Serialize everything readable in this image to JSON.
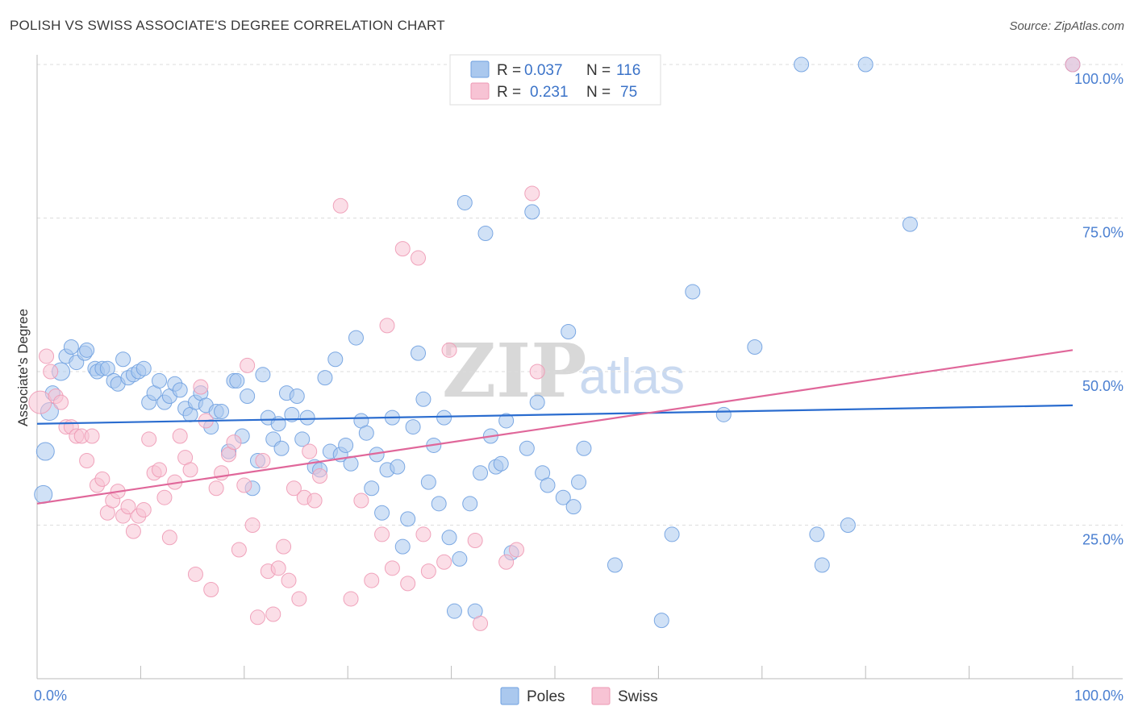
{
  "title": "POLISH VS SWISS ASSOCIATE'S DEGREE CORRELATION CHART",
  "source": "Source: ZipAtlas.com",
  "watermark": {
    "zip": "ZIP",
    "atlas": "atlas"
  },
  "chart_data": {
    "type": "scatter",
    "title": "POLISH VS SWISS ASSOCIATE'S DEGREE CORRELATION CHART",
    "xlabel": "",
    "ylabel": "Associate's Degree",
    "xlim": [
      0,
      100
    ],
    "ylim": [
      0,
      100
    ],
    "x_tick_labels": [
      "0.0%",
      "100.0%"
    ],
    "y_ticks": [
      25,
      50,
      75,
      100
    ],
    "y_tick_labels": [
      "25.0%",
      "50.0%",
      "75.0%",
      "100.0%"
    ],
    "grid": "horizontal dashed",
    "legend": {
      "placement": "top-center",
      "entries": [
        {
          "series": "Poles",
          "r_label": "R =",
          "r_value": "0.037",
          "n_label": "N =",
          "n_value": "116"
        },
        {
          "series": "Swiss",
          "r_label": "R =",
          "r_value": "0.231",
          "n_label": "N =",
          "n_value": "75"
        }
      ]
    },
    "bottom_legend": [
      "Poles",
      "Swiss"
    ],
    "series": [
      {
        "name": "Poles",
        "color": "#6fa0e0",
        "fill": "#aac8ee",
        "line_color": "#2a6ccf",
        "trend": {
          "x": [
            0,
            100
          ],
          "y": [
            41.5,
            44.5
          ]
        },
        "points": [
          {
            "x": 0.6,
            "y": 30,
            "r": 11
          },
          {
            "x": 0.8,
            "y": 37,
            "r": 11
          },
          {
            "x": 1.2,
            "y": 43.5,
            "r": 11
          },
          {
            "x": 1.5,
            "y": 46.5,
            "r": 9
          },
          {
            "x": 2.3,
            "y": 50,
            "r": 11
          },
          {
            "x": 2.8,
            "y": 52.5,
            "r": 9
          },
          {
            "x": 3.3,
            "y": 54,
            "r": 9
          },
          {
            "x": 3.8,
            "y": 51.5,
            "r": 9
          },
          {
            "x": 4.6,
            "y": 53,
            "r": 9
          },
          {
            "x": 4.8,
            "y": 53.5,
            "r": 9
          },
          {
            "x": 5.6,
            "y": 50.5,
            "r": 9
          },
          {
            "x": 5.8,
            "y": 50,
            "r": 9
          },
          {
            "x": 6.3,
            "y": 50.5,
            "r": 9
          },
          {
            "x": 6.8,
            "y": 50.5,
            "r": 9
          },
          {
            "x": 7.4,
            "y": 48.5,
            "r": 9
          },
          {
            "x": 7.8,
            "y": 48,
            "r": 9
          },
          {
            "x": 8.3,
            "y": 52,
            "r": 9
          },
          {
            "x": 8.8,
            "y": 49,
            "r": 9
          },
          {
            "x": 9.3,
            "y": 49.5,
            "r": 9
          },
          {
            "x": 9.8,
            "y": 50,
            "r": 9
          },
          {
            "x": 10.3,
            "y": 50.5,
            "r": 9
          },
          {
            "x": 10.8,
            "y": 45,
            "r": 9
          },
          {
            "x": 11.3,
            "y": 46.5,
            "r": 9
          },
          {
            "x": 11.8,
            "y": 48.5,
            "r": 9
          },
          {
            "x": 12.3,
            "y": 45,
            "r": 9
          },
          {
            "x": 12.8,
            "y": 46,
            "r": 9
          },
          {
            "x": 13.3,
            "y": 48,
            "r": 9
          },
          {
            "x": 13.8,
            "y": 47,
            "r": 9
          },
          {
            "x": 14.3,
            "y": 44,
            "r": 9
          },
          {
            "x": 14.8,
            "y": 43,
            "r": 9
          },
          {
            "x": 15.3,
            "y": 45,
            "r": 9
          },
          {
            "x": 15.8,
            "y": 46.5,
            "r": 9
          },
          {
            "x": 16.3,
            "y": 44.5,
            "r": 9
          },
          {
            "x": 16.8,
            "y": 41,
            "r": 9
          },
          {
            "x": 17.3,
            "y": 43.5,
            "r": 9
          },
          {
            "x": 17.8,
            "y": 43.5,
            "r": 9
          },
          {
            "x": 18.5,
            "y": 37,
            "r": 9
          },
          {
            "x": 19.0,
            "y": 48.5,
            "r": 9
          },
          {
            "x": 19.3,
            "y": 48.5,
            "r": 9
          },
          {
            "x": 19.8,
            "y": 39.5,
            "r": 9
          },
          {
            "x": 20.3,
            "y": 46,
            "r": 9
          },
          {
            "x": 20.8,
            "y": 31,
            "r": 9
          },
          {
            "x": 21.3,
            "y": 35.5,
            "r": 9
          },
          {
            "x": 21.8,
            "y": 49.5,
            "r": 9
          },
          {
            "x": 22.3,
            "y": 42.5,
            "r": 9
          },
          {
            "x": 22.8,
            "y": 39,
            "r": 9
          },
          {
            "x": 23.3,
            "y": 41.5,
            "r": 9
          },
          {
            "x": 23.6,
            "y": 37.5,
            "r": 9
          },
          {
            "x": 24.1,
            "y": 46.5,
            "r": 9
          },
          {
            "x": 24.6,
            "y": 43,
            "r": 9
          },
          {
            "x": 25.1,
            "y": 46,
            "r": 9
          },
          {
            "x": 25.6,
            "y": 39,
            "r": 9
          },
          {
            "x": 26.1,
            "y": 42.5,
            "r": 9
          },
          {
            "x": 26.8,
            "y": 34.5,
            "r": 9
          },
          {
            "x": 27.3,
            "y": 34,
            "r": 9
          },
          {
            "x": 27.8,
            "y": 49,
            "r": 9
          },
          {
            "x": 28.3,
            "y": 37,
            "r": 9
          },
          {
            "x": 28.8,
            "y": 52,
            "r": 9
          },
          {
            "x": 29.3,
            "y": 36.5,
            "r": 9
          },
          {
            "x": 29.8,
            "y": 38,
            "r": 9
          },
          {
            "x": 30.3,
            "y": 35,
            "r": 9
          },
          {
            "x": 30.8,
            "y": 55.5,
            "r": 9
          },
          {
            "x": 31.3,
            "y": 42,
            "r": 9
          },
          {
            "x": 31.8,
            "y": 40,
            "r": 9
          },
          {
            "x": 32.3,
            "y": 31,
            "r": 9
          },
          {
            "x": 32.8,
            "y": 36.5,
            "r": 9
          },
          {
            "x": 33.3,
            "y": 27,
            "r": 9
          },
          {
            "x": 33.8,
            "y": 34,
            "r": 9
          },
          {
            "x": 34.3,
            "y": 42.5,
            "r": 9
          },
          {
            "x": 34.8,
            "y": 34.5,
            "r": 9
          },
          {
            "x": 35.3,
            "y": 21.5,
            "r": 9
          },
          {
            "x": 35.8,
            "y": 26,
            "r": 9
          },
          {
            "x": 36.3,
            "y": 41,
            "r": 9
          },
          {
            "x": 36.8,
            "y": 53,
            "r": 9
          },
          {
            "x": 37.3,
            "y": 45.5,
            "r": 9
          },
          {
            "x": 37.8,
            "y": 32,
            "r": 9
          },
          {
            "x": 38.3,
            "y": 38,
            "r": 9
          },
          {
            "x": 38.8,
            "y": 28.5,
            "r": 9
          },
          {
            "x": 39.3,
            "y": 42.5,
            "r": 9
          },
          {
            "x": 39.8,
            "y": 23,
            "r": 9
          },
          {
            "x": 40.3,
            "y": 11,
            "r": 9
          },
          {
            "x": 40.8,
            "y": 19.5,
            "r": 9
          },
          {
            "x": 41.3,
            "y": 77.5,
            "r": 9
          },
          {
            "x": 41.8,
            "y": 28.5,
            "r": 9
          },
          {
            "x": 42.3,
            "y": 11,
            "r": 9
          },
          {
            "x": 42.8,
            "y": 33.5,
            "r": 9
          },
          {
            "x": 43.3,
            "y": 72.5,
            "r": 9
          },
          {
            "x": 43.8,
            "y": 39.5,
            "r": 9
          },
          {
            "x": 44.3,
            "y": 34.5,
            "r": 9
          },
          {
            "x": 44.8,
            "y": 35,
            "r": 9
          },
          {
            "x": 45.3,
            "y": 42,
            "r": 9
          },
          {
            "x": 45.8,
            "y": 20.5,
            "r": 9
          },
          {
            "x": 47.3,
            "y": 37.5,
            "r": 9
          },
          {
            "x": 47.8,
            "y": 76,
            "r": 9
          },
          {
            "x": 48.3,
            "y": 45,
            "r": 9
          },
          {
            "x": 48.8,
            "y": 33.5,
            "r": 9
          },
          {
            "x": 49.3,
            "y": 31.5,
            "r": 9
          },
          {
            "x": 50.8,
            "y": 29.5,
            "r": 9
          },
          {
            "x": 51.3,
            "y": 56.5,
            "r": 9
          },
          {
            "x": 51.8,
            "y": 28,
            "r": 9
          },
          {
            "x": 52.3,
            "y": 32,
            "r": 9
          },
          {
            "x": 52.8,
            "y": 37.5,
            "r": 9
          },
          {
            "x": 55.8,
            "y": 18.5,
            "r": 9
          },
          {
            "x": 60.3,
            "y": 9.5,
            "r": 9
          },
          {
            "x": 61.3,
            "y": 23.5,
            "r": 9
          },
          {
            "x": 63.3,
            "y": 63,
            "r": 9
          },
          {
            "x": 66.3,
            "y": 43,
            "r": 9
          },
          {
            "x": 69.3,
            "y": 54,
            "r": 9
          },
          {
            "x": 73.8,
            "y": 100,
            "r": 9
          },
          {
            "x": 75.3,
            "y": 23.5,
            "r": 9
          },
          {
            "x": 75.8,
            "y": 18.5,
            "r": 9
          },
          {
            "x": 78.3,
            "y": 25,
            "r": 9
          },
          {
            "x": 80.0,
            "y": 100,
            "r": 9
          },
          {
            "x": 84.3,
            "y": 74,
            "r": 9
          },
          {
            "x": 100,
            "y": 100,
            "r": 9
          }
        ]
      },
      {
        "name": "Swiss",
        "color": "#ee9ab5",
        "fill": "#f7c3d4",
        "line_color": "#e0679a",
        "trend": {
          "x": [
            0,
            100
          ],
          "y": [
            28.5,
            53.5
          ]
        },
        "points": [
          {
            "x": 0.3,
            "y": 45,
            "r": 14
          },
          {
            "x": 0.9,
            "y": 52.5,
            "r": 9
          },
          {
            "x": 1.3,
            "y": 50,
            "r": 9
          },
          {
            "x": 1.8,
            "y": 46,
            "r": 9
          },
          {
            "x": 2.3,
            "y": 45,
            "r": 9
          },
          {
            "x": 2.8,
            "y": 41,
            "r": 9
          },
          {
            "x": 3.3,
            "y": 41,
            "r": 9
          },
          {
            "x": 3.8,
            "y": 39.5,
            "r": 9
          },
          {
            "x": 4.3,
            "y": 39.5,
            "r": 9
          },
          {
            "x": 4.8,
            "y": 35.5,
            "r": 9
          },
          {
            "x": 5.3,
            "y": 39.5,
            "r": 9
          },
          {
            "x": 5.8,
            "y": 31.5,
            "r": 9
          },
          {
            "x": 6.3,
            "y": 32.5,
            "r": 9
          },
          {
            "x": 6.8,
            "y": 27,
            "r": 9
          },
          {
            "x": 7.3,
            "y": 29,
            "r": 9
          },
          {
            "x": 7.8,
            "y": 30.5,
            "r": 9
          },
          {
            "x": 8.3,
            "y": 26.5,
            "r": 9
          },
          {
            "x": 8.8,
            "y": 28,
            "r": 9
          },
          {
            "x": 9.3,
            "y": 24,
            "r": 9
          },
          {
            "x": 9.8,
            "y": 26.5,
            "r": 9
          },
          {
            "x": 10.3,
            "y": 27.5,
            "r": 9
          },
          {
            "x": 10.8,
            "y": 39,
            "r": 9
          },
          {
            "x": 11.3,
            "y": 33.5,
            "r": 9
          },
          {
            "x": 11.8,
            "y": 34,
            "r": 9
          },
          {
            "x": 12.3,
            "y": 29.5,
            "r": 9
          },
          {
            "x": 12.8,
            "y": 23,
            "r": 9
          },
          {
            "x": 13.3,
            "y": 32,
            "r": 9
          },
          {
            "x": 13.8,
            "y": 39.5,
            "r": 9
          },
          {
            "x": 14.3,
            "y": 36,
            "r": 9
          },
          {
            "x": 14.8,
            "y": 34,
            "r": 9
          },
          {
            "x": 15.3,
            "y": 17,
            "r": 9
          },
          {
            "x": 15.8,
            "y": 47.5,
            "r": 9
          },
          {
            "x": 16.3,
            "y": 42,
            "r": 9
          },
          {
            "x": 16.8,
            "y": 14.5,
            "r": 9
          },
          {
            "x": 17.3,
            "y": 31,
            "r": 9
          },
          {
            "x": 17.8,
            "y": 33.5,
            "r": 9
          },
          {
            "x": 18.5,
            "y": 36.5,
            "r": 9
          },
          {
            "x": 19.0,
            "y": 38.5,
            "r": 9
          },
          {
            "x": 19.5,
            "y": 21,
            "r": 9
          },
          {
            "x": 20.0,
            "y": 31.5,
            "r": 9
          },
          {
            "x": 20.3,
            "y": 51,
            "r": 9
          },
          {
            "x": 20.8,
            "y": 25,
            "r": 9
          },
          {
            "x": 21.3,
            "y": 10,
            "r": 9
          },
          {
            "x": 21.8,
            "y": 35.5,
            "r": 9
          },
          {
            "x": 22.3,
            "y": 17.5,
            "r": 9
          },
          {
            "x": 22.8,
            "y": 10.5,
            "r": 9
          },
          {
            "x": 23.3,
            "y": 18,
            "r": 9
          },
          {
            "x": 23.8,
            "y": 21.5,
            "r": 9
          },
          {
            "x": 24.3,
            "y": 16,
            "r": 9
          },
          {
            "x": 24.8,
            "y": 31,
            "r": 9
          },
          {
            "x": 25.3,
            "y": 13,
            "r": 9
          },
          {
            "x": 25.8,
            "y": 29.5,
            "r": 9
          },
          {
            "x": 26.3,
            "y": 37,
            "r": 9
          },
          {
            "x": 26.8,
            "y": 29,
            "r": 9
          },
          {
            "x": 27.3,
            "y": 33,
            "r": 9
          },
          {
            "x": 29.3,
            "y": 77,
            "r": 9
          },
          {
            "x": 30.3,
            "y": 13,
            "r": 9
          },
          {
            "x": 31.3,
            "y": 29,
            "r": 9
          },
          {
            "x": 32.3,
            "y": 16,
            "r": 9
          },
          {
            "x": 33.3,
            "y": 23.5,
            "r": 9
          },
          {
            "x": 33.8,
            "y": 57.5,
            "r": 9
          },
          {
            "x": 34.3,
            "y": 18,
            "r": 9
          },
          {
            "x": 35.3,
            "y": 70,
            "r": 9
          },
          {
            "x": 35.8,
            "y": 15.5,
            "r": 9
          },
          {
            "x": 36.8,
            "y": 68.5,
            "r": 9
          },
          {
            "x": 37.3,
            "y": 23.5,
            "r": 9
          },
          {
            "x": 37.8,
            "y": 17.5,
            "r": 9
          },
          {
            "x": 39.3,
            "y": 19,
            "r": 9
          },
          {
            "x": 39.8,
            "y": 53.5,
            "r": 9
          },
          {
            "x": 42.3,
            "y": 22.5,
            "r": 9
          },
          {
            "x": 42.8,
            "y": 9,
            "r": 9
          },
          {
            "x": 45.3,
            "y": 19,
            "r": 9
          },
          {
            "x": 46.3,
            "y": 21,
            "r": 9
          },
          {
            "x": 47.8,
            "y": 79,
            "r": 9
          },
          {
            "x": 48.3,
            "y": 50,
            "r": 9
          },
          {
            "x": 100,
            "y": 100,
            "r": 9
          }
        ]
      }
    ]
  }
}
